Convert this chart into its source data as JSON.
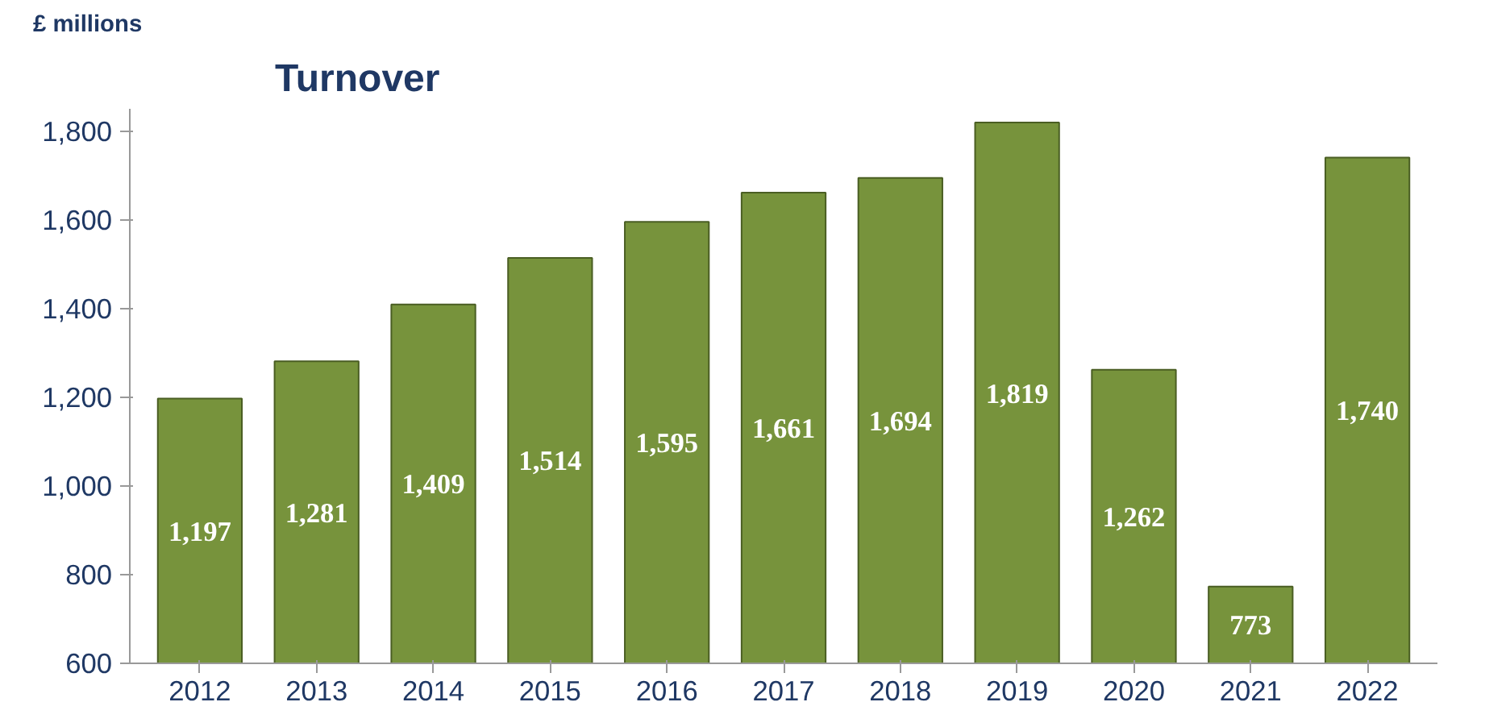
{
  "chart_data": {
    "type": "bar",
    "title": "Turnover",
    "ylabel": "£ millions",
    "categories": [
      "2012",
      "2013",
      "2014",
      "2015",
      "2016",
      "2017",
      "2018",
      "2019",
      "2020",
      "2021",
      "2022"
    ],
    "values": [
      1197,
      1281,
      1409,
      1514,
      1595,
      1661,
      1694,
      1819,
      1262,
      773,
      1740
    ],
    "value_labels": [
      "1,197",
      "1,281",
      "1,409",
      "1,514",
      "1,595",
      "1,661",
      "1,694",
      "1,819",
      "1,262",
      "773",
      "1,740"
    ],
    "color": "#77933c",
    "ylim": [
      600,
      1850
    ],
    "yticks": [
      600,
      800,
      {
        "value": 1000,
        "label": "1,000"
      },
      {
        "value": 1200,
        "label": "1,200"
      },
      {
        "value": 1400,
        "label": "1,400"
      },
      {
        "value": 1600,
        "label": "1,600"
      },
      {
        "value": 1800,
        "label": "1,800"
      }
    ],
    "grid": false
  }
}
